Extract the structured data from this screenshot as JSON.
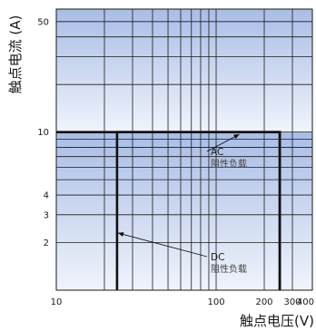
{
  "chart_data": {
    "type": "line",
    "x_scale": "log",
    "y_scale": "log",
    "xlim": [
      10,
      400
    ],
    "ylim": [
      1,
      60
    ],
    "grid": true,
    "xlabel": "触点电压(V)",
    "ylabel": "触点电流 (A)",
    "x_ticks": [
      10,
      100,
      200,
      300,
      400
    ],
    "x_tick_labels": [
      "10",
      "100",
      "200",
      "300",
      "400"
    ],
    "y_ticks": [
      2,
      3,
      4,
      10,
      50
    ],
    "y_tick_labels": [
      "2",
      "3",
      "4",
      "10",
      "50"
    ],
    "series": [
      {
        "name": "AC",
        "x": [
          250,
          250,
          10
        ],
        "y": [
          1,
          10,
          10
        ],
        "color": "#111111"
      },
      {
        "name": "DC",
        "x": [
          24,
          24,
          250,
          250
        ],
        "y": [
          1,
          10,
          10,
          1
        ],
        "color": "#111111"
      }
    ],
    "annotations": [
      {
        "title": "AC",
        "subtitle": "阻性负载",
        "point": [
          138,
          9.7
        ]
      },
      {
        "title": "DC",
        "subtitle": "阻性负载",
        "point": [
          24,
          2.3
        ]
      }
    ],
    "colors": {
      "band_dark": "#a9bde6",
      "band_light": "#eef2fb",
      "grid": "#1a1a1a",
      "line": "#111111"
    }
  }
}
